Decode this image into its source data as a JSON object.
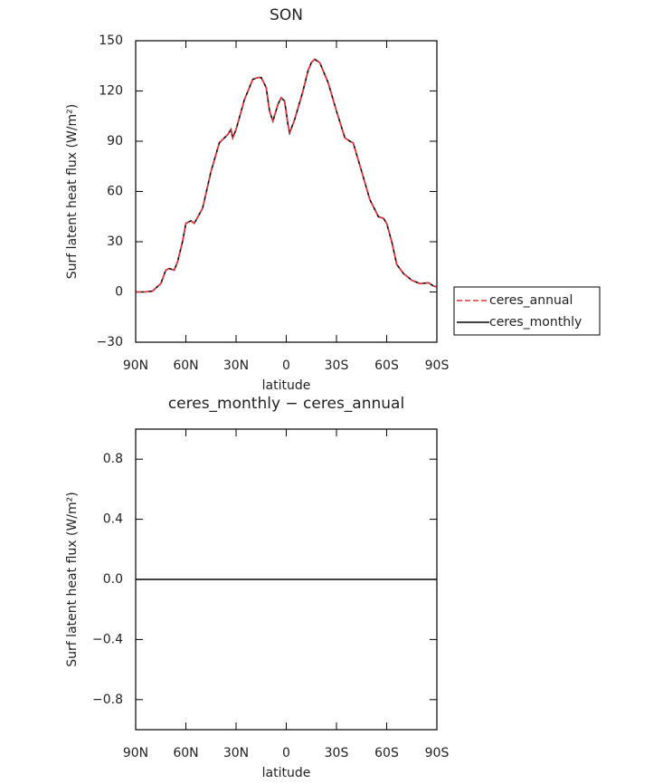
{
  "chart_data": [
    {
      "type": "line",
      "title": "SON",
      "xlabel": "latitude",
      "ylabel": "Surf latent heat flux (W/m²)",
      "x": [
        90,
        85,
        80,
        75,
        72,
        70,
        67,
        65,
        62,
        60,
        57,
        55,
        50,
        45,
        40,
        35,
        33,
        32,
        30,
        25,
        20,
        17,
        15,
        12,
        10,
        8,
        5,
        3,
        1,
        -1,
        -2,
        -5,
        -10,
        -13,
        -15,
        -17,
        -20,
        -25,
        -30,
        -35,
        -38,
        -40,
        -45,
        -50,
        -53,
        -55,
        -58,
        -60,
        -63,
        -66,
        -70,
        -75,
        -80,
        -85,
        -88,
        -90
      ],
      "series": [
        {
          "name": "ceres_monthly",
          "color": "#000000",
          "dash": false,
          "values": [
            0,
            0,
            0.5,
            5,
            13,
            14,
            13,
            18,
            30,
            41,
            42.5,
            41,
            50,
            72,
            89,
            94,
            97,
            92,
            97,
            115,
            127,
            128,
            128,
            122,
            108,
            102,
            112,
            116,
            114,
            100,
            95,
            103,
            120,
            132,
            137,
            139,
            137,
            125,
            108,
            92,
            90,
            89,
            72,
            55,
            49,
            45,
            44,
            41,
            30,
            16.5,
            11,
            7,
            5,
            5.5,
            3.5,
            3
          ]
        },
        {
          "name": "ceres_annual",
          "color": "#e8333a",
          "dash": true,
          "values": [
            0,
            0,
            0.5,
            5,
            13,
            14,
            13,
            18,
            30,
            41,
            42.5,
            41,
            50,
            72,
            89,
            94,
            97,
            92,
            97,
            115,
            127,
            128,
            128,
            122,
            108,
            102,
            112,
            116,
            114,
            100,
            95,
            103,
            120,
            132,
            137,
            139,
            137,
            125,
            108,
            92,
            90,
            89,
            72,
            55,
            49,
            45,
            44,
            41,
            30,
            16.5,
            11,
            7,
            5,
            5.5,
            3.5,
            3
          ]
        }
      ],
      "xlim": [
        90,
        -90
      ],
      "xticks": [
        {
          "value": 90,
          "label": "90N"
        },
        {
          "value": 60,
          "label": "60N"
        },
        {
          "value": 30,
          "label": "30N"
        },
        0,
        {
          "value": -30,
          "label": "30S"
        },
        {
          "value": -60,
          "label": "60S"
        },
        {
          "value": -90,
          "label": "90S"
        }
      ],
      "ylim": [
        -30,
        150
      ],
      "yticks": [
        {
          "value": -30,
          "label": "−30"
        },
        0,
        30,
        60,
        90,
        120,
        150
      ],
      "legend": "right"
    },
    {
      "type": "line",
      "title": "ceres_monthly − ceres_annual",
      "xlabel": "latitude",
      "ylabel": "Surf latent heat flux (W/m²)",
      "x": [
        90,
        -90
      ],
      "values": [
        0,
        0
      ],
      "color": "#000000",
      "xlim": [
        90,
        -90
      ],
      "xticks": [
        {
          "value": 90,
          "label": "90N"
        },
        {
          "value": 60,
          "label": "60N"
        },
        {
          "value": 30,
          "label": "30N"
        },
        0,
        {
          "value": -30,
          "label": "30S"
        },
        {
          "value": -60,
          "label": "60S"
        },
        {
          "value": -90,
          "label": "90S"
        }
      ],
      "ylim": [
        -1,
        1
      ],
      "yticks": [
        {
          "value": -0.8,
          "label": "−0.8"
        },
        {
          "value": -0.4,
          "label": "−0.4"
        },
        {
          "value": 0,
          "label": "0.0"
        },
        0.4,
        0.8
      ]
    }
  ]
}
